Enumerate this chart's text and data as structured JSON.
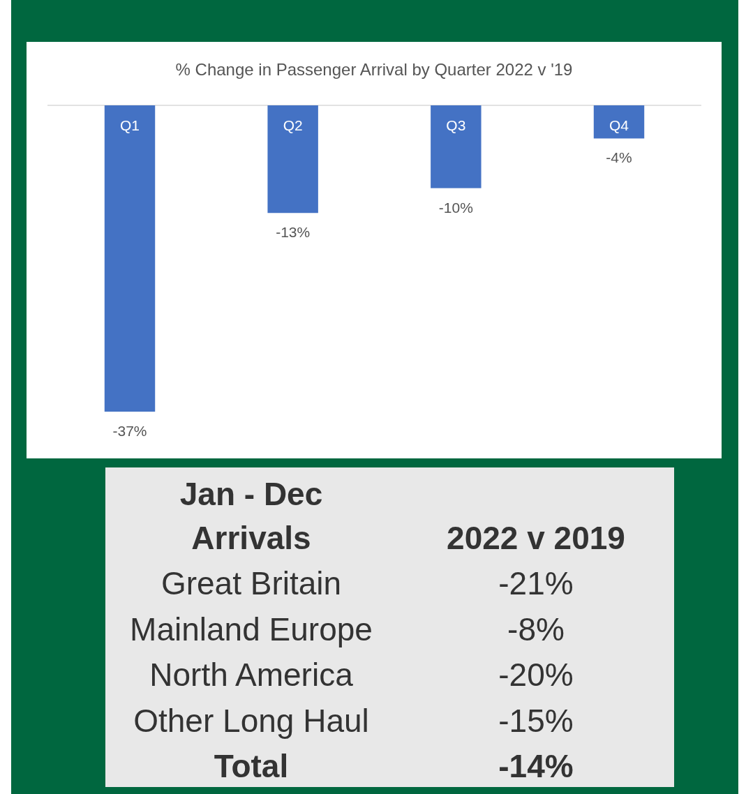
{
  "chart_data": [
    {
      "type": "bar",
      "title": "% Change in Passenger Arrival by Quarter 2022 v '19",
      "categories": [
        "Q1",
        "Q2",
        "Q3",
        "Q4"
      ],
      "values": [
        -37,
        -13,
        -10,
        -4
      ],
      "value_labels": [
        "-37%",
        "-13%",
        "-10%",
        "-4%"
      ],
      "color": "#4472c4"
    },
    {
      "type": "other",
      "title": "Jan - Dec\nArrivals",
      "subtitle": "2022 v 2019",
      "categories": [
        "Great Britain",
        "Mainland Europe",
        "North America",
        "Other Long Haul",
        "Total"
      ],
      "value_labels": [
        "-21%",
        "-8%",
        "-20%",
        "-15%",
        "-14%"
      ]
    }
  ]
}
